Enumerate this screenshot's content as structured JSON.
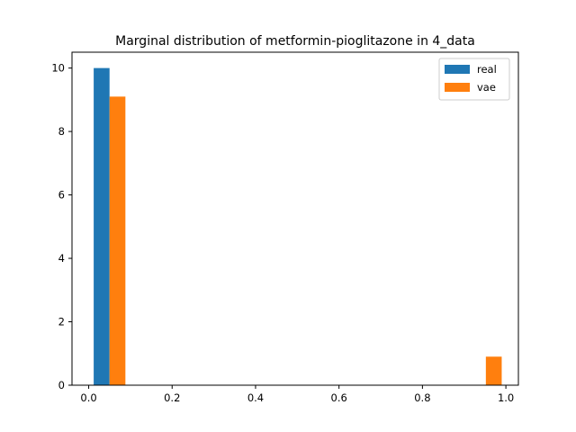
{
  "chart_data": {
    "type": "bar",
    "title": "Marginal distribution of metformin-pioglitazone in 4_data",
    "xlabel": "",
    "ylabel": "",
    "xlim": [
      -0.04,
      1.03
    ],
    "ylim": [
      0,
      10.5
    ],
    "x_ticks": [
      {
        "value": 0.0,
        "label": "0.0"
      },
      {
        "value": 0.2,
        "label": "0.2"
      },
      {
        "value": 0.4,
        "label": "0.4"
      },
      {
        "value": 0.6,
        "label": "0.6"
      },
      {
        "value": 0.8,
        "label": "0.8"
      },
      {
        "value": 1.0,
        "label": "1.0"
      }
    ],
    "y_ticks": [
      {
        "value": 0,
        "label": "0"
      },
      {
        "value": 2,
        "label": "2"
      },
      {
        "value": 4,
        "label": "4"
      },
      {
        "value": 6,
        "label": "6"
      },
      {
        "value": 8,
        "label": "8"
      },
      {
        "value": 10,
        "label": "10"
      }
    ],
    "grid": false,
    "legend_position": "top-right",
    "series": [
      {
        "name": "real",
        "color": "#1f77b4",
        "bars": [
          {
            "x0": 0.012,
            "x1": 0.05,
            "value": 10.0
          }
        ]
      },
      {
        "name": "vae",
        "color": "#ff7f0e",
        "bars": [
          {
            "x0": 0.05,
            "x1": 0.088,
            "value": 9.1
          },
          {
            "x0": 0.952,
            "x1": 0.99,
            "value": 0.9
          }
        ]
      }
    ]
  }
}
